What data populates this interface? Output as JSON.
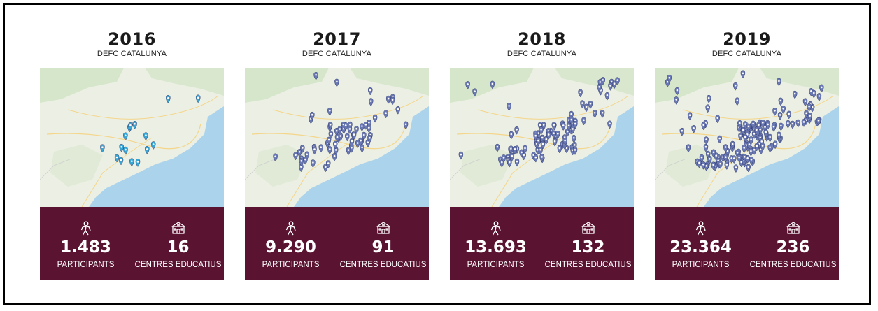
{
  "colors": {
    "stat_background": "#5a1330",
    "pin_2016": "#3aa6d6",
    "pin_other": "#6a78b4",
    "sea": "#a9d3ec",
    "land": "#e9efdf"
  },
  "cards": [
    {
      "year": "2016",
      "subtitle": "DEFC CATALUNYA",
      "participants": "1.483",
      "participants_label": "PARTICIPANTS",
      "centres": "16",
      "centres_label": "CENTRES EDUCATIUS",
      "participant_icon": "person-icon",
      "centres_icon": "school-icon"
    },
    {
      "year": "2017",
      "subtitle": "DEFC CATALUNYA",
      "participants": "9.290",
      "participants_label": "PARTICIPANTS",
      "centres": "91",
      "centres_label": "CENTRES EDUCATIUS",
      "participant_icon": "person-icon",
      "centres_icon": "school-icon"
    },
    {
      "year": "2018",
      "subtitle": "DEFC CATALUNYA",
      "participants": "13.693",
      "participants_label": "PARTICIPANTS",
      "centres": "132",
      "centres_label": "CENTRES EDUCATIUS",
      "participant_icon": "person-icon",
      "centres_icon": "school-icon"
    },
    {
      "year": "2019",
      "subtitle": "DEFC CATALUNYA",
      "participants": "23.364",
      "participants_label": "PARTICIPANTS",
      "centres": "236",
      "centres_label": "CENTRES EDUCATIUS",
      "participant_icon": "person-icon",
      "centres_icon": "school-icon"
    }
  ]
}
